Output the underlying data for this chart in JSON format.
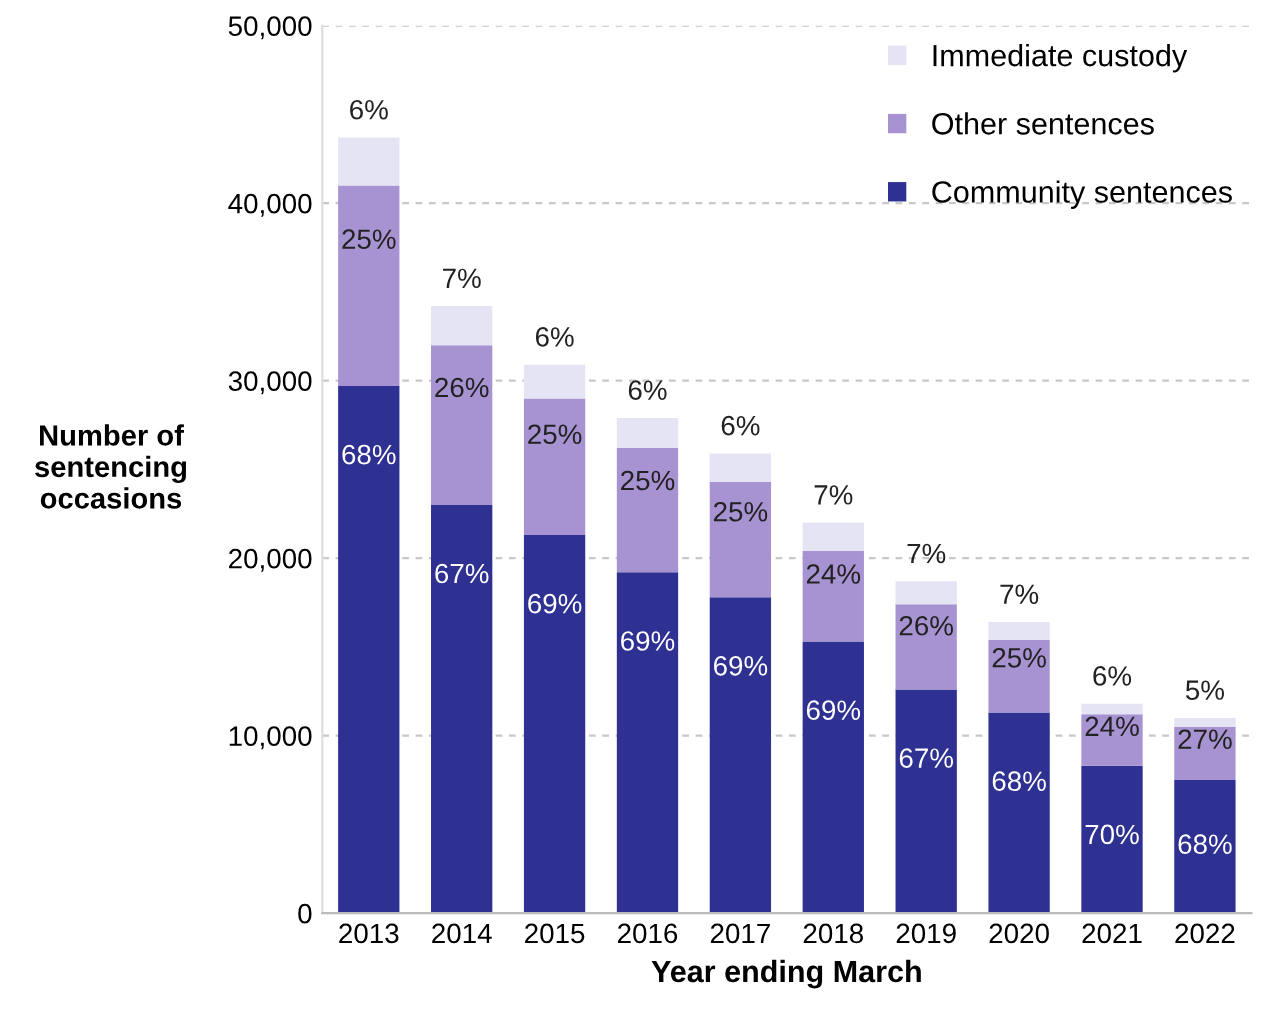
{
  "chart_data": {
    "type": "bar",
    "stacked": true,
    "xlabel": "Year ending March",
    "ylabel": "Number of\nsentencing\noccasions",
    "categories": [
      "2013",
      "2014",
      "2015",
      "2016",
      "2017",
      "2018",
      "2019",
      "2020",
      "2021",
      "2022"
    ],
    "series": [
      {
        "name": "Community sentences",
        "color": "#2e3192",
        "values": [
          29700,
          23000,
          21300,
          19200,
          17800,
          15300,
          12600,
          11300,
          8300,
          7500
        ]
      },
      {
        "name": "Other sentences",
        "color": "#a893d2",
        "values": [
          11300,
          9000,
          7700,
          7000,
          6500,
          5100,
          4800,
          4100,
          2900,
          3000
        ]
      },
      {
        "name": "Immediate custody",
        "color": "#e4e4f4",
        "values": [
          2700,
          2200,
          1900,
          1700,
          1600,
          1600,
          1300,
          1000,
          600,
          500
        ]
      }
    ],
    "annotations": [
      {
        "text": "68%",
        "x": "2013",
        "y": 29700
      },
      {
        "text": "67%",
        "x": "2014",
        "y": 23000
      },
      {
        "text": "69%",
        "x": "2015",
        "y": 21300
      },
      {
        "text": "69%",
        "x": "2016",
        "y": 19200
      },
      {
        "text": "69%",
        "x": "2017",
        "y": 17800
      },
      {
        "text": "69%",
        "x": "2018",
        "y": 15300
      },
      {
        "text": "67%",
        "x": "2019",
        "y": 12600
      },
      {
        "text": "68%",
        "x": "2020",
        "y": 11300
      },
      {
        "text": "70%",
        "x": "2021",
        "y": 8300
      },
      {
        "text": "68%",
        "x": "2022",
        "y": 7500
      },
      {
        "text": "25%",
        "x": "2013",
        "y": 41000
      },
      {
        "text": "26%",
        "x": "2014",
        "y": 32000
      },
      {
        "text": "25%",
        "x": "2015",
        "y": 29000
      },
      {
        "text": "25%",
        "x": "2016",
        "y": 26200
      },
      {
        "text": "25%",
        "x": "2017",
        "y": 24300
      },
      {
        "text": "24%",
        "x": "2018",
        "y": 20400
      },
      {
        "text": "26%",
        "x": "2019",
        "y": 17400
      },
      {
        "text": "25%",
        "x": "2020",
        "y": 15400
      },
      {
        "text": "24%",
        "x": "2021",
        "y": 11200
      },
      {
        "text": "27%",
        "x": "2022",
        "y": 10500
      },
      {
        "text": "6%",
        "x": "2013",
        "y": 43700
      },
      {
        "text": "7%",
        "x": "2014",
        "y": 34200
      },
      {
        "text": "6%",
        "x": "2015",
        "y": 30900
      },
      {
        "text": "6%",
        "x": "2016",
        "y": 27900
      },
      {
        "text": "6%",
        "x": "2017",
        "y": 25900
      },
      {
        "text": "7%",
        "x": "2018",
        "y": 22000
      },
      {
        "text": "7%",
        "x": "2019",
        "y": 18700
      },
      {
        "text": "7%",
        "x": "2020",
        "y": 16400
      },
      {
        "text": "6%",
        "x": "2021",
        "y": 11800
      },
      {
        "text": "5%",
        "x": "2022",
        "y": 11000
      }
    ],
    "ylim": [
      0,
      50000
    ],
    "yticks": [
      0,
      {
        "value": 10000,
        "label": "10,000"
      },
      {
        "value": 20000,
        "label": "20,000"
      },
      {
        "value": 30000,
        "label": "30,000"
      },
      {
        "value": 40000,
        "label": "40,000"
      },
      {
        "value": 50000,
        "label": "50,000"
      }
    ],
    "grid": "y",
    "legend": "top right"
  }
}
